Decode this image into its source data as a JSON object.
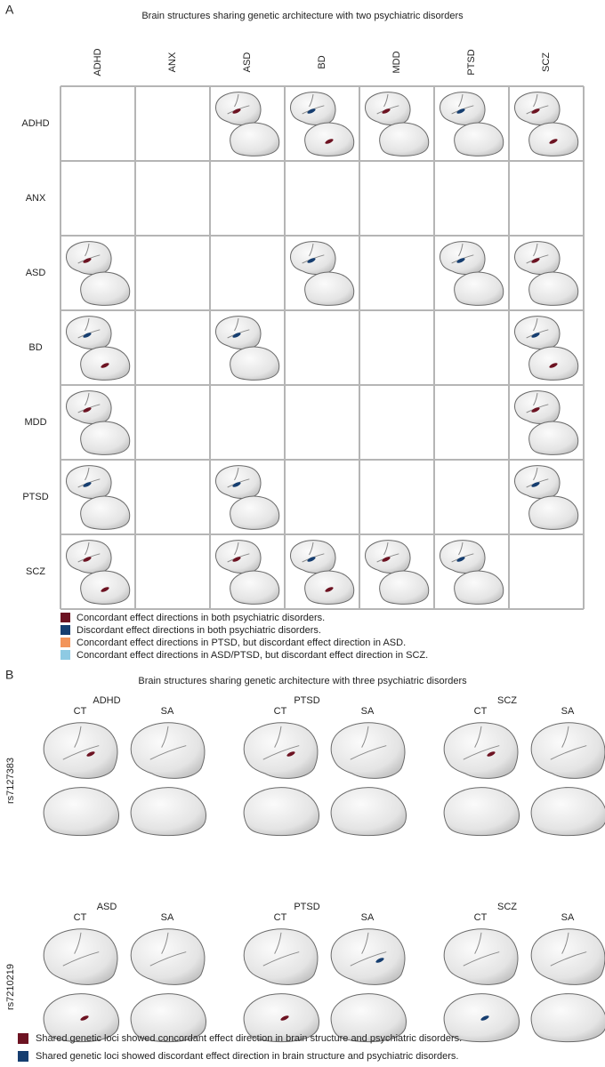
{
  "panel_a": {
    "label": "A",
    "title": "Brain structures sharing genetic architecture with two psychiatric disorders",
    "columns": [
      "ADHD",
      "ANX",
      "ASD",
      "BD",
      "MDD",
      "PTSD",
      "SCZ"
    ],
    "rows": [
      "ADHD",
      "ANX",
      "ASD",
      "BD",
      "MDD",
      "PTSD",
      "SCZ"
    ],
    "legend": [
      {
        "text": "Concordant effect directions in both psychiatric disorders.",
        "color": "#6d1322"
      },
      {
        "text": "Discordant effect directions in both psychiatric disorders.",
        "color": "#163e70"
      },
      {
        "text": "Concordant effect directions in PTSD, but discordant effect direction in ASD.",
        "color": "#f2945a"
      },
      {
        "text": "Concordant effect directions in ASD/PTSD, but discordant effect direction in SCZ.",
        "color": "#8ecae3"
      }
    ]
  },
  "panel_b": {
    "label": "B",
    "title": "Brain structures sharing genetic architecture with three psychiatric disorders",
    "rows": [
      {
        "snp": "rs7127383",
        "groups": [
          {
            "disorder": "ADHD",
            "measures": [
              "CT",
              "SA"
            ]
          },
          {
            "disorder": "PTSD",
            "measures": [
              "CT",
              "SA"
            ]
          },
          {
            "disorder": "SCZ",
            "measures": [
              "CT",
              "SA"
            ]
          }
        ]
      },
      {
        "snp": "rs7210219",
        "groups": [
          {
            "disorder": "ASD",
            "measures": [
              "CT",
              "SA"
            ]
          },
          {
            "disorder": "PTSD",
            "measures": [
              "CT",
              "SA"
            ]
          },
          {
            "disorder": "SCZ",
            "measures": [
              "CT",
              "SA"
            ]
          }
        ]
      }
    ],
    "legend": [
      {
        "text": "Shared genetic loci showed concordant effect direction in brain structure and psychiatric disorders.",
        "color": "#6d1322"
      },
      {
        "text": "Shared genetic loci showed discordant effect direction in brain structure and psychiatric disorders.",
        "color": "#163e70"
      }
    ]
  }
}
